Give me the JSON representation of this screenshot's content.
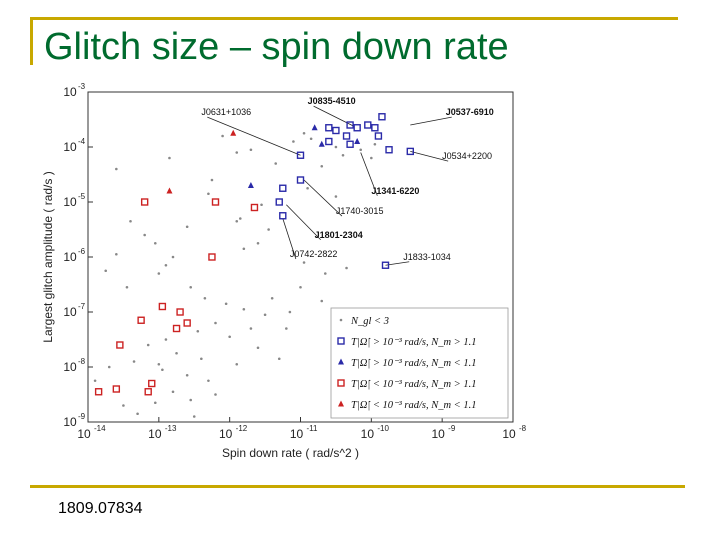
{
  "slide": {
    "title": "Glitch size – spin down rate",
    "reference": "1809.07834"
  },
  "chart_data": {
    "type": "scatter",
    "xlabel": "Spin down rate  ( rad/s^2 )",
    "ylabel": "Largest glitch amplitude  ( rad/s )",
    "xscale": "log",
    "yscale": "log",
    "xlim_exp": [
      -14,
      -8
    ],
    "ylim_exp": [
      -9,
      -3
    ],
    "x_ticks": [
      {
        "exp": -14,
        "label": "10",
        "sup": "-14"
      },
      {
        "exp": -13,
        "label": "10",
        "sup": "-13"
      },
      {
        "exp": -12,
        "label": "10",
        "sup": "-12"
      },
      {
        "exp": -11,
        "label": "10",
        "sup": "-11"
      },
      {
        "exp": -10,
        "label": "10",
        "sup": "-10"
      },
      {
        "exp": -9,
        "label": "10",
        "sup": "-9"
      },
      {
        "exp": -8,
        "label": "10",
        "sup": "-8"
      }
    ],
    "y_ticks": [
      {
        "exp": -3,
        "label": "10",
        "sup": "-3"
      },
      {
        "exp": -4,
        "label": "10",
        "sup": "-4"
      },
      {
        "exp": -5,
        "label": "10",
        "sup": "-5"
      },
      {
        "exp": -6,
        "label": "10",
        "sup": "-6"
      },
      {
        "exp": -7,
        "label": "10",
        "sup": "-7"
      },
      {
        "exp": -8,
        "label": "10",
        "sup": "-8"
      },
      {
        "exp": -9,
        "label": "10",
        "sup": "-9"
      }
    ],
    "colors": {
      "dots": "#888888",
      "blue": "#2a2aa8",
      "red": "#cc2222"
    },
    "legend": {
      "placement": "bottom-right",
      "entries": [
        {
          "marker": "dot",
          "text": "N_gl < 3"
        },
        {
          "marker": "blue-square",
          "text": "T|Ω̇| > 10⁻³ rad/s,  N_m > 1.1"
        },
        {
          "marker": "blue-triangle",
          "text": "T|Ω̇| > 10⁻³ rad/s,  N_m < 1.1"
        },
        {
          "marker": "red-square",
          "text": "T|Ω̇| < 10⁻³ rad/s,  N_m > 1.1"
        },
        {
          "marker": "red-triangle",
          "text": "T|Ω̇| < 10⁻³ rad/s,  N_m < 1.1"
        }
      ]
    },
    "series": [
      {
        "marker": "blue-square",
        "points": [
          [
            -11.0,
            -4.15
          ],
          [
            -10.6,
            -3.65
          ],
          [
            -10.3,
            -3.6
          ],
          [
            -10.2,
            -3.65
          ],
          [
            -10.05,
            -3.6
          ],
          [
            -9.95,
            -3.65
          ],
          [
            -9.85,
            -3.45
          ],
          [
            -9.9,
            -3.8
          ],
          [
            -10.6,
            -3.9
          ],
          [
            -10.35,
            -3.8
          ],
          [
            -10.3,
            -3.95
          ],
          [
            -9.75,
            -4.05
          ],
          [
            -11.0,
            -4.6
          ],
          [
            -11.25,
            -4.75
          ],
          [
            -11.3,
            -5.0
          ],
          [
            -11.25,
            -5.25
          ],
          [
            -10.5,
            -3.7
          ],
          [
            -9.45,
            -4.08
          ],
          [
            -9.8,
            -6.15
          ]
        ]
      },
      {
        "marker": "blue-triangle",
        "points": [
          [
            -10.8,
            -3.65
          ],
          [
            -10.7,
            -3.95
          ],
          [
            -10.2,
            -3.9
          ],
          [
            -11.7,
            -4.7
          ]
        ]
      },
      {
        "marker": "red-square",
        "points": [
          [
            -13.2,
            -5.0
          ],
          [
            -12.2,
            -5.0
          ],
          [
            -11.65,
            -5.1
          ],
          [
            -12.25,
            -6.0
          ],
          [
            -12.95,
            -6.9
          ],
          [
            -12.7,
            -7.0
          ],
          [
            -12.6,
            -7.2
          ],
          [
            -13.25,
            -7.15
          ],
          [
            -12.75,
            -7.3
          ],
          [
            -13.55,
            -7.6
          ],
          [
            -13.1,
            -8.3
          ],
          [
            -13.6,
            -8.4
          ],
          [
            -13.85,
            -8.45
          ],
          [
            -13.15,
            -8.45
          ]
        ]
      },
      {
        "marker": "red-triangle",
        "points": [
          [
            -11.95,
            -3.75
          ],
          [
            -12.85,
            -4.8
          ]
        ]
      },
      {
        "marker": "dot",
        "points": [
          [
            -12.1,
            -3.8
          ],
          [
            -11.9,
            -4.1
          ],
          [
            -11.7,
            -4.05
          ],
          [
            -11.1,
            -3.9
          ],
          [
            -10.95,
            -3.75
          ],
          [
            -10.85,
            -3.85
          ],
          [
            -10.5,
            -4.0
          ],
          [
            -10.4,
            -4.15
          ],
          [
            -10.15,
            -4.05
          ],
          [
            -9.95,
            -3.95
          ],
          [
            -10.7,
            -4.35
          ],
          [
            -10.9,
            -4.75
          ],
          [
            -10.5,
            -4.9
          ],
          [
            -11.55,
            -5.05
          ],
          [
            -11.6,
            -5.75
          ],
          [
            -11.8,
            -5.85
          ],
          [
            -11.9,
            -5.35
          ],
          [
            -12.25,
            -4.6
          ],
          [
            -12.3,
            -4.85
          ],
          [
            -12.6,
            -5.45
          ],
          [
            -12.8,
            -6.0
          ],
          [
            -12.9,
            -6.15
          ],
          [
            -13.05,
            -5.75
          ],
          [
            -13.2,
            -5.6
          ],
          [
            -13.4,
            -5.35
          ],
          [
            -13.6,
            -5.95
          ],
          [
            -13.75,
            -6.25
          ],
          [
            -13.45,
            -6.55
          ],
          [
            -13.0,
            -6.3
          ],
          [
            -12.55,
            -6.55
          ],
          [
            -12.35,
            -6.75
          ],
          [
            -12.05,
            -6.85
          ],
          [
            -11.8,
            -6.95
          ],
          [
            -11.5,
            -7.05
          ],
          [
            -11.7,
            -7.3
          ],
          [
            -11.2,
            -7.3
          ],
          [
            -11.0,
            -6.55
          ],
          [
            -10.95,
            -6.1
          ],
          [
            -10.35,
            -6.2
          ],
          [
            -10.65,
            -6.3
          ],
          [
            -12.2,
            -7.2
          ],
          [
            -12.0,
            -7.45
          ],
          [
            -12.4,
            -7.85
          ],
          [
            -12.75,
            -7.75
          ],
          [
            -12.95,
            -8.05
          ],
          [
            -12.6,
            -8.15
          ],
          [
            -12.3,
            -8.25
          ],
          [
            -11.9,
            -7.95
          ],
          [
            -11.6,
            -7.65
          ],
          [
            -11.3,
            -7.85
          ],
          [
            -12.2,
            -8.5
          ],
          [
            -12.55,
            -8.6
          ],
          [
            -12.8,
            -8.45
          ],
          [
            -13.05,
            -8.65
          ],
          [
            -13.3,
            -8.85
          ],
          [
            -13.5,
            -8.7
          ],
          [
            -13.7,
            -8.0
          ],
          [
            -13.9,
            -8.25
          ],
          [
            -13.35,
            -7.9
          ],
          [
            -13.15,
            -7.6
          ],
          [
            -12.9,
            -7.5
          ],
          [
            -13.0,
            -7.95
          ],
          [
            -12.45,
            -7.35
          ],
          [
            -11.4,
            -6.75
          ],
          [
            -11.15,
            -7.0
          ],
          [
            -10.7,
            -6.8
          ],
          [
            -11.85,
            -5.3
          ],
          [
            -12.5,
            -8.9
          ],
          [
            -13.6,
            -4.4
          ],
          [
            -12.85,
            -4.2
          ],
          [
            -11.35,
            -4.3
          ],
          [
            -10.0,
            -4.2
          ],
          [
            -11.45,
            -5.5
          ]
        ]
      }
    ],
    "annotations": [
      {
        "text": "J0631+1036",
        "bold": false,
        "x": -12.4,
        "y": -3.42,
        "to_x": -11.0,
        "to_y": -4.15
      },
      {
        "text": "J0835-4510",
        "bold": true,
        "x": -10.9,
        "y": -3.22,
        "to_x": -10.25,
        "to_y": -3.62
      },
      {
        "text": "J0537-6910",
        "bold": true,
        "x": -8.95,
        "y": -3.42,
        "to_x": -9.45,
        "to_y": -3.6
      },
      {
        "text": "J0534+2200",
        "bold": false,
        "x": -9.0,
        "y": -4.22,
        "to_x": -9.45,
        "to_y": -4.08
      },
      {
        "text": "J1341-6220",
        "bold": true,
        "x": -10.0,
        "y": -4.85,
        "to_x": -10.15,
        "to_y": -4.1
      },
      {
        "text": "J1740-3015",
        "bold": false,
        "x": -10.5,
        "y": -5.22,
        "to_x": -10.95,
        "to_y": -4.6
      },
      {
        "text": "J1801-2304",
        "bold": true,
        "x": -10.8,
        "y": -5.65,
        "to_x": -11.2,
        "to_y": -5.05
      },
      {
        "text": "J0742-2822",
        "bold": false,
        "x": -11.15,
        "y": -6.0,
        "to_x": -11.25,
        "to_y": -5.3
      },
      {
        "text": "J1833-1034",
        "bold": false,
        "x": -9.55,
        "y": -6.05,
        "to_x": -9.8,
        "to_y": -6.15
      }
    ]
  }
}
